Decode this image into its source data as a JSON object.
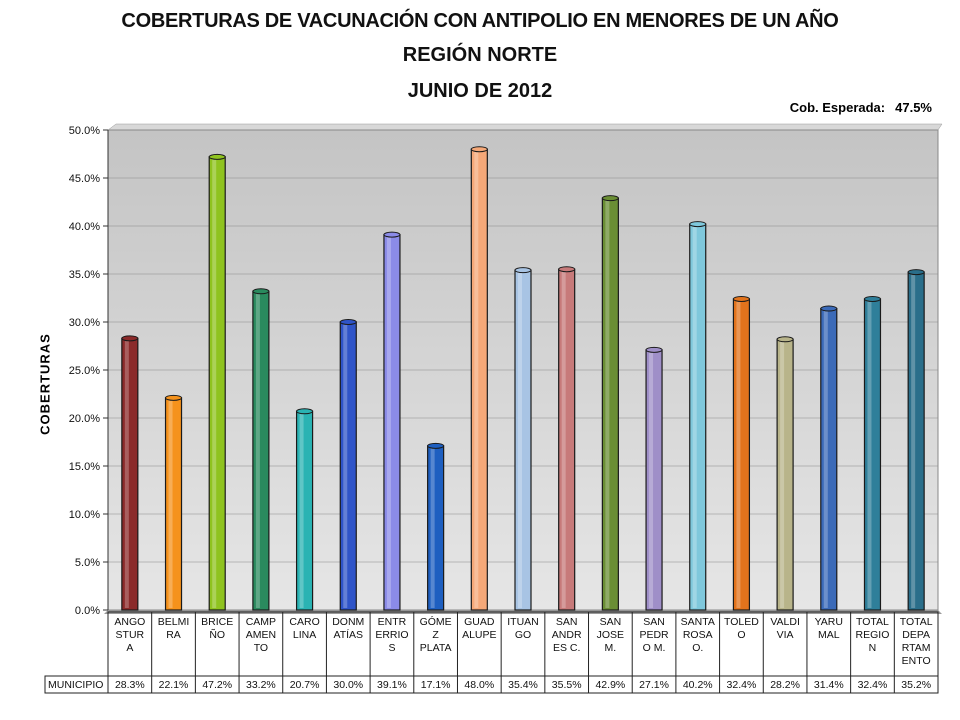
{
  "chart_data": {
    "type": "bar",
    "title": "COBERTURAS DE VACUNACIÓN CON ANTIPOLIO EN MENORES DE UN AÑO",
    "subtitle": "REGIÓN NORTE",
    "period": "JUNIO DE 2012",
    "expected_label": "Cob. Esperada:",
    "expected_value": "47.5%",
    "ylabel": "COBERTURAS",
    "xlabel": "",
    "ylim": [
      0,
      50
    ],
    "yticks": [
      "0.0%",
      "5.0%",
      "10.0%",
      "15.0%",
      "20.0%",
      "25.0%",
      "30.0%",
      "35.0%",
      "40.0%",
      "45.0%",
      "50.0%"
    ],
    "grid": true,
    "series_name": "MUNICIPIO",
    "categories": [
      [
        "ANGO",
        "STUR",
        "A"
      ],
      [
        "BELMI",
        "RA"
      ],
      [
        "BRICE",
        "ÑO"
      ],
      [
        "CAMP",
        "AMEN",
        "TO"
      ],
      [
        "CARO",
        "LINA"
      ],
      [
        "DONM",
        "ATÍAS"
      ],
      [
        "ENTR",
        "ERRIO",
        "S"
      ],
      [
        "GÓME",
        "Z",
        "PLATA"
      ],
      [
        "GUAD",
        "ALUPE"
      ],
      [
        "ITUAN",
        "GO"
      ],
      [
        "SAN",
        "ANDR",
        "ES C."
      ],
      [
        "SAN",
        "JOSE",
        "M."
      ],
      [
        "SAN",
        "PEDR",
        "O M."
      ],
      [
        "SANTA",
        "ROSA",
        "O."
      ],
      [
        "TOLED",
        "O"
      ],
      [
        "VALDI",
        "VIA"
      ],
      [
        "YARU",
        "MAL"
      ],
      [
        "TOTAL",
        "REGIO",
        "N"
      ],
      [
        "TOTAL",
        "DEPA",
        "RTAM",
        "ENTO"
      ]
    ],
    "values": [
      28.3,
      22.1,
      47.2,
      33.2,
      20.7,
      30.0,
      39.1,
      17.1,
      48.0,
      35.4,
      35.5,
      42.9,
      27.1,
      40.2,
      32.4,
      28.2,
      31.4,
      32.4,
      35.2
    ],
    "value_labels": [
      "28.3%",
      "22.1%",
      "47.2%",
      "33.2%",
      "20.7%",
      "30.0%",
      "39.1%",
      "17.1%",
      "48.0%",
      "35.4%",
      "35.5%",
      "42.9%",
      "27.1%",
      "40.2%",
      "32.4%",
      "28.2%",
      "31.4%",
      "32.4%",
      "35.2%"
    ],
    "colors": [
      "#8b2a2a",
      "#f5921c",
      "#8fc31f",
      "#2a8a5e",
      "#2ab3b3",
      "#2f54c8",
      "#8b8be8",
      "#1e5fc0",
      "#f5a878",
      "#a8c4e4",
      "#c77a7a",
      "#6a8e34",
      "#9f8fc8",
      "#7fc8dc",
      "#e2731c",
      "#b8b48a",
      "#3b6ab8",
      "#2f7f9a",
      "#2a6e8a"
    ]
  }
}
